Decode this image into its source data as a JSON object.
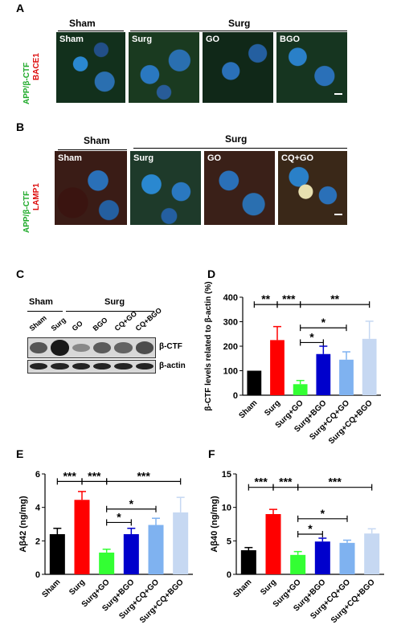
{
  "panels": {
    "A": {
      "letter": "A",
      "group_sham": "Sham",
      "group_surg": "Surg",
      "stain_green": "APP/β-CTF",
      "stain_red": "BACE1",
      "images": [
        "Sham",
        "Surg",
        "GO",
        "BGO"
      ]
    },
    "B": {
      "letter": "B",
      "group_sham": "Sham",
      "group_surg": "Surg",
      "stain_green": "APP/β-CTF",
      "stain_red": "LAMP1",
      "images": [
        "Sham",
        "Surg",
        "GO",
        "CQ+GO"
      ]
    },
    "C": {
      "letter": "C",
      "group_sham": "Sham",
      "group_surg": "Surg",
      "lanes": [
        "Sham",
        "Surg",
        "GO",
        "BGO",
        "CQ+GO",
        "CQ+BGO"
      ],
      "bands": [
        "β-CTF",
        "β-actin"
      ],
      "ctf_intensity": [
        0.55,
        0.95,
        0.2,
        0.5,
        0.45,
        0.6
      ]
    },
    "D": {
      "letter": "D"
    },
    "E": {
      "letter": "E"
    },
    "F": {
      "letter": "F"
    }
  },
  "chart_data": [
    {
      "panel": "D",
      "type": "bar",
      "categories": [
        "Sham",
        "Surg",
        "Surg+GO",
        "Surg+BGO",
        "Surg+CQ+GO",
        "Surg+CQ+BGO"
      ],
      "values": [
        100,
        225,
        45,
        168,
        145,
        230
      ],
      "errors": [
        0,
        55,
        15,
        32,
        32,
        72
      ],
      "colors": [
        "#000000",
        "#ff0000",
        "#33ff33",
        "#0000cc",
        "#7fb2f0",
        "#c6d8f2"
      ],
      "ylabel": "β-CTF levels related to β-actin (%)",
      "ylim": [
        0,
        400
      ],
      "yticks": [
        "0",
        "100",
        "200",
        "300",
        "400"
      ],
      "sig": [
        {
          "from": 0,
          "to": 1,
          "label": "**",
          "y": 370
        },
        {
          "from": 1,
          "to": 2,
          "label": "***",
          "y": 370
        },
        {
          "from": 2,
          "to": 5,
          "label": "**",
          "y": 370
        },
        {
          "from": 2,
          "to": 4,
          "label": "*",
          "y": 275
        },
        {
          "from": 2,
          "to": 3,
          "label": "*",
          "y": 215
        }
      ]
    },
    {
      "panel": "E",
      "type": "bar",
      "categories": [
        "Sham",
        "Surg",
        "Surg+GO",
        "Surg+BGO",
        "Surg+CQ+GO",
        "Surg+CQ+BGO"
      ],
      "values": [
        2.4,
        4.45,
        1.3,
        2.4,
        2.95,
        3.7
      ],
      "errors": [
        0.35,
        0.5,
        0.2,
        0.35,
        0.4,
        0.9
      ],
      "colors": [
        "#000000",
        "#ff0000",
        "#33ff33",
        "#0000cc",
        "#7fb2f0",
        "#c6d8f2"
      ],
      "ylabel": "Aβ42 (ng/mg)",
      "ylim": [
        0,
        6
      ],
      "yticks": [
        "0",
        "2",
        "4",
        "6"
      ],
      "sig": [
        {
          "from": 0,
          "to": 1,
          "label": "***",
          "y": 5.55
        },
        {
          "from": 1,
          "to": 2,
          "label": "***",
          "y": 5.55
        },
        {
          "from": 2,
          "to": 5,
          "label": "***",
          "y": 5.55
        },
        {
          "from": 2,
          "to": 4,
          "label": "*",
          "y": 3.9
        },
        {
          "from": 2,
          "to": 3,
          "label": "*",
          "y": 3.1
        }
      ]
    },
    {
      "panel": "F",
      "type": "bar",
      "categories": [
        "Sham",
        "Surg",
        "Surg+GO",
        "Surg+BGO",
        "Surg+CQ+GO",
        "Surg+CQ+BGO"
      ],
      "values": [
        3.6,
        9.0,
        2.9,
        4.9,
        4.7,
        6.1
      ],
      "errors": [
        0.4,
        0.7,
        0.5,
        0.5,
        0.4,
        0.7
      ],
      "colors": [
        "#000000",
        "#ff0000",
        "#33ff33",
        "#0000cc",
        "#7fb2f0",
        "#c6d8f2"
      ],
      "ylabel": "Aβ40 (ng/mg)",
      "ylim": [
        0,
        15
      ],
      "yticks": [
        "0",
        "5",
        "10",
        "15"
      ],
      "sig": [
        {
          "from": 0,
          "to": 1,
          "label": "***",
          "y": 13.0
        },
        {
          "from": 1,
          "to": 2,
          "label": "***",
          "y": 13.0
        },
        {
          "from": 2,
          "to": 5,
          "label": "***",
          "y": 13.0
        },
        {
          "from": 2,
          "to": 4,
          "label": "*",
          "y": 8.3
        },
        {
          "from": 2,
          "to": 3,
          "label": "*",
          "y": 6.0
        }
      ]
    }
  ]
}
